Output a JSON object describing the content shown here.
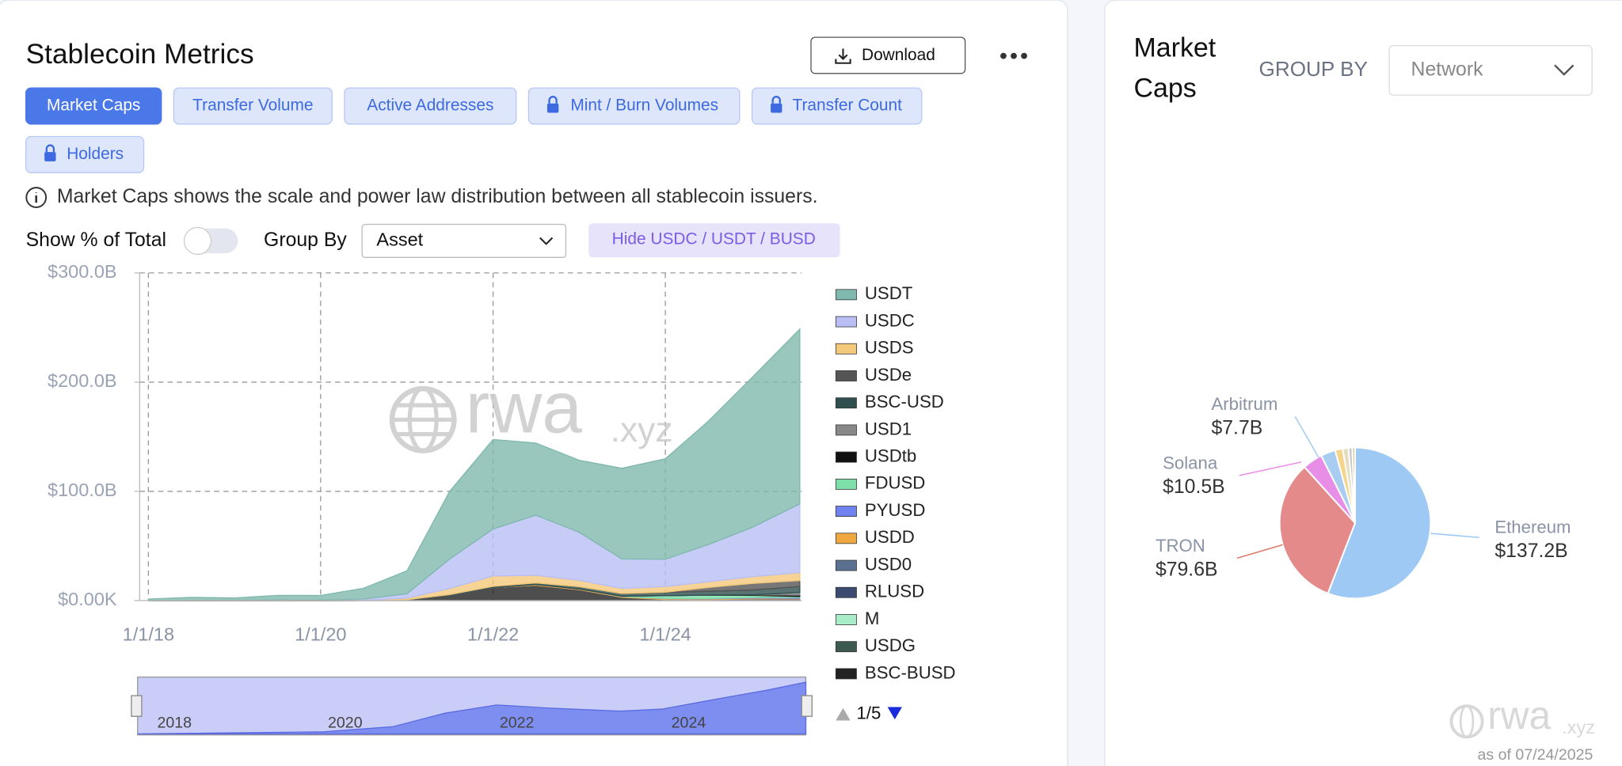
{
  "ui": {
    "title": "Stablecoin Metrics",
    "download": "Download",
    "tabs": [
      {
        "label": "Market Caps",
        "active": true,
        "locked": false
      },
      {
        "label": "Transfer Volume",
        "active": false,
        "locked": false
      },
      {
        "label": "Active Addresses",
        "active": false,
        "locked": false
      },
      {
        "label": "Mint / Burn Volumes",
        "active": false,
        "locked": true
      },
      {
        "label": "Transfer Count",
        "active": false,
        "locked": true
      },
      {
        "label": "Holders",
        "active": false,
        "locked": true
      }
    ],
    "info": "Market Caps shows the scale and power law distribution between all stablecoin issuers.",
    "show_percent_label": "Show % of Total",
    "group_by_label": "Group By",
    "group_by_value": "Asset",
    "hide_button": "Hide USDC / USDT / BUSD",
    "legend_page": "1/5",
    "navigator_labels": [
      "2018",
      "2020",
      "2022",
      "2024"
    ],
    "watermark": {
      "name": "rwa",
      "suffix": ".xyz"
    },
    "side_panel": {
      "title_lines": [
        "Market",
        "Caps"
      ],
      "group_by_label": "GROUP BY",
      "group_by_value": "Network",
      "as_of": "as of 07/24/2025"
    }
  },
  "chart_data": [
    {
      "type": "area",
      "stacked": true,
      "grid": true,
      "x": [
        "2018-01-01",
        "2018-07-01",
        "2019-01-01",
        "2019-07-01",
        "2020-01-01",
        "2020-07-01",
        "2021-01-01",
        "2021-07-01",
        "2022-01-01",
        "2022-07-01",
        "2023-01-01",
        "2023-07-01",
        "2024-01-01",
        "2024-07-01",
        "2025-01-01",
        "2025-07-24"
      ],
      "xlim": [
        "2017-11-25",
        "2025-08-01"
      ],
      "xticks": [
        {
          "value": "2018-01-01",
          "label": "1/1/18"
        },
        {
          "value": "2020-01-01",
          "label": "1/1/20"
        },
        {
          "value": "2022-01-01",
          "label": "1/1/22"
        },
        {
          "value": "2024-01-01",
          "label": "1/1/24"
        }
      ],
      "ylim": [
        0,
        300
      ],
      "yticks": [
        {
          "value": 0,
          "label": "$0.00K"
        },
        {
          "value": 100,
          "label": "$100.0B"
        },
        {
          "value": 200,
          "label": "$200.0B"
        },
        {
          "value": 300,
          "label": "$300.0B"
        }
      ],
      "series": [
        {
          "name": "USDT",
          "color": "#7fb8ad",
          "values": [
            1.4,
            2.7,
            2,
            4.1,
            4.1,
            9.9,
            21,
            62,
            82,
            66,
            66,
            83,
            92,
            113,
            137,
            160
          ]
        },
        {
          "name": "USDC",
          "color": "#b9bff5",
          "values": [
            0,
            0.2,
            0.3,
            0.6,
            0.5,
            1.1,
            4,
            27,
            43,
            55,
            44,
            27,
            25,
            34,
            45,
            63
          ]
        },
        {
          "name": "USDS",
          "color": "#f5c97a",
          "values": [
            0,
            0.04,
            0.07,
            0.07,
            0.06,
            0.2,
            1.3,
            5.5,
            9.5,
            7,
            5.8,
            4.6,
            5.1,
            5.2,
            6.2,
            7.2
          ]
        },
        {
          "name": "USDe",
          "color": "#555555",
          "values": [
            0,
            0,
            0,
            0,
            0,
            0,
            0,
            0,
            0,
            0,
            0,
            0,
            0.2,
            3.5,
            6,
            5.5
          ]
        },
        {
          "name": "BSC-USD",
          "color": "#2f4f4f",
          "values": [
            0,
            0,
            0,
            0,
            0,
            0,
            0.1,
            0.5,
            1,
            1.5,
            2,
            2.5,
            3,
            3.5,
            4.5,
            5.5
          ]
        },
        {
          "name": "USD1",
          "color": "#888888",
          "values": [
            0,
            0,
            0,
            0,
            0,
            0,
            0,
            0,
            0,
            0,
            0,
            0,
            0,
            0,
            0,
            2.2
          ]
        },
        {
          "name": "USDtb",
          "color": "#111111",
          "values": [
            0,
            0,
            0,
            0,
            0,
            0,
            0,
            0,
            0,
            0,
            0,
            0,
            0,
            0.1,
            0.3,
            1.4
          ]
        },
        {
          "name": "FDUSD",
          "color": "#7de0a8",
          "values": [
            0,
            0,
            0,
            0,
            0,
            0,
            0,
            0,
            0,
            0,
            0,
            0.3,
            2.5,
            3,
            2,
            0.8
          ]
        },
        {
          "name": "PYUSD",
          "color": "#6f82f0",
          "values": [
            0,
            0,
            0,
            0,
            0,
            0,
            0,
            0,
            0,
            0,
            0,
            0,
            0.3,
            0.4,
            0.5,
            0.9
          ]
        },
        {
          "name": "USDD",
          "color": "#f0a840",
          "values": [
            0,
            0,
            0,
            0,
            0,
            0,
            0,
            0,
            0,
            0.7,
            0.7,
            0.7,
            0.7,
            0.7,
            0.7,
            0.5
          ]
        },
        {
          "name": "USD0",
          "color": "#5a7090",
          "values": [
            0,
            0,
            0,
            0,
            0,
            0,
            0,
            0,
            0,
            0,
            0,
            0,
            0,
            0.5,
            1.3,
            0.6
          ]
        },
        {
          "name": "RLUSD",
          "color": "#3a4a70",
          "values": [
            0,
            0,
            0,
            0,
            0,
            0,
            0,
            0,
            0,
            0,
            0,
            0,
            0,
            0,
            0.07,
            0.5
          ]
        },
        {
          "name": "M",
          "color": "#a8ecc8",
          "values": [
            0,
            0,
            0,
            0,
            0,
            0,
            0,
            0,
            0,
            0,
            0,
            0,
            0,
            0,
            0.05,
            0.15
          ]
        },
        {
          "name": "USDG",
          "color": "#3d5a50",
          "values": [
            0,
            0,
            0,
            0,
            0,
            0,
            0,
            0,
            0,
            0,
            0,
            0,
            0,
            0,
            0,
            0.2
          ]
        },
        {
          "name": "BSC-BUSD",
          "color": "#222222",
          "values": [
            0,
            0,
            0,
            0,
            0.01,
            0.1,
            0.8,
            5,
            12,
            14,
            10,
            3,
            1,
            0.3,
            0.2,
            0.1
          ]
        }
      ]
    },
    {
      "type": "pie",
      "categories": [
        "Ethereum",
        "TRON",
        "Solana",
        "Arbitrum",
        null,
        null,
        null,
        null
      ],
      "values": [
        137.2,
        79.6,
        10.5,
        7.7,
        4,
        3,
        2,
        1.5
      ],
      "value_labels": [
        "$137.2B",
        "$79.6B",
        "$10.5B",
        "$7.7B",
        null,
        null,
        null,
        null
      ],
      "colors": [
        "#9ec9f5",
        "#e58a8a",
        "#e98ee6",
        "#a8cdf0",
        "#f3d48a",
        "#e8dcc0",
        "#c8c8c8",
        "#d9c89a"
      ]
    }
  ]
}
